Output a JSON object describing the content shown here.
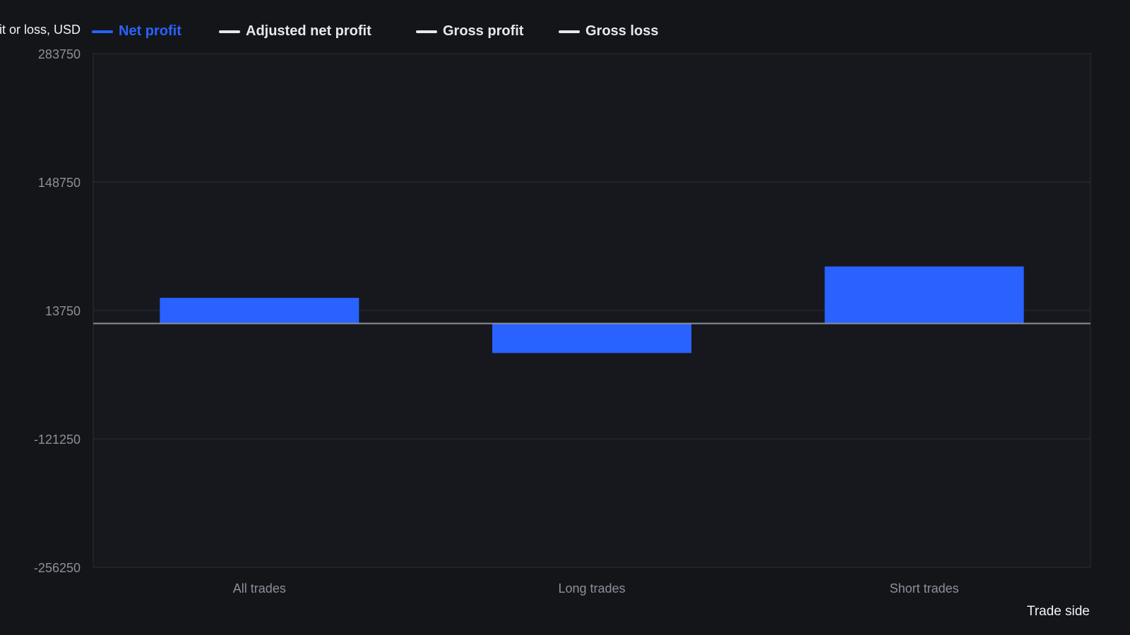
{
  "chart_data": {
    "type": "bar",
    "ylabel": "Net profit or loss, USD",
    "xlabel": "Trade side",
    "categories": [
      "All trades",
      "Long trades",
      "Short trades"
    ],
    "series": [
      {
        "name": "Net profit",
        "values": [
          27000,
          -31000,
          60000
        ]
      }
    ],
    "legend": [
      {
        "name": "Net profit",
        "color": "#2962ff",
        "active": true
      },
      {
        "name": "Adjusted net profit",
        "color": "#e6e8eb",
        "active": false
      },
      {
        "name": "Gross profit",
        "color": "#e6e8eb",
        "active": false
      },
      {
        "name": "Gross loss",
        "color": "#e6e8eb",
        "active": false
      }
    ],
    "ylim": [
      -256250,
      283750
    ],
    "yticks": [
      283750,
      148750,
      13750,
      -121250,
      -256250
    ],
    "ytick_labels": [
      "283750",
      "148750",
      "13750",
      "-121250",
      "-256250"
    ],
    "grid": true,
    "legend_position": "top-left",
    "colors": {
      "background": "#131519",
      "plot_background": "#16181d",
      "bar": "#2962ff",
      "grid": "#2a2e36",
      "zero_line": "#8a8f98",
      "tick_text": "#8b9099",
      "legend_active": "#2962ff",
      "legend_text": "#e6e8eb"
    }
  }
}
